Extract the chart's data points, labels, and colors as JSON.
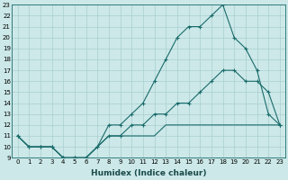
{
  "xlabel": "Humidex (Indice chaleur)",
  "bg_color": "#cce8e8",
  "grid_color": "#aacfcf",
  "line_color": "#1a6b6b",
  "line1_x": [
    0,
    1,
    2,
    3,
    4,
    5,
    6,
    7,
    8,
    9,
    10,
    11,
    12,
    13,
    14,
    15,
    16,
    17,
    18,
    19,
    20,
    21,
    22,
    23
  ],
  "line1_y": [
    11,
    10,
    10,
    10,
    9,
    9,
    9,
    10,
    12,
    12,
    13,
    14,
    16,
    18,
    20,
    21,
    21,
    22,
    23,
    20,
    19,
    17,
    13,
    12
  ],
  "line2_x": [
    0,
    1,
    2,
    3,
    4,
    5,
    6,
    7,
    8,
    9,
    10,
    11,
    12,
    13,
    14,
    15,
    16,
    17,
    18,
    19,
    20,
    21,
    22,
    23
  ],
  "line2_y": [
    11,
    10,
    10,
    10,
    9,
    9,
    9,
    10,
    11,
    11,
    12,
    12,
    13,
    13,
    14,
    14,
    15,
    16,
    17,
    17,
    16,
    16,
    15,
    12
  ],
  "line3_x": [
    0,
    1,
    2,
    3,
    4,
    5,
    6,
    7,
    8,
    9,
    10,
    11,
    12,
    13,
    14,
    15,
    16,
    17,
    18,
    19,
    20,
    21,
    22,
    23
  ],
  "line3_y": [
    11,
    10,
    10,
    10,
    9,
    9,
    9,
    10,
    11,
    11,
    11,
    11,
    11,
    12,
    12,
    12,
    12,
    12,
    12,
    12,
    12,
    12,
    12,
    12
  ],
  "xlim": [
    -0.5,
    23.5
  ],
  "ylim": [
    9,
    23
  ],
  "yticks": [
    9,
    10,
    11,
    12,
    13,
    14,
    15,
    16,
    17,
    18,
    19,
    20,
    21,
    22,
    23
  ],
  "xticks": [
    0,
    1,
    2,
    3,
    4,
    5,
    6,
    7,
    8,
    9,
    10,
    11,
    12,
    13,
    14,
    15,
    16,
    17,
    18,
    19,
    20,
    21,
    22,
    23
  ],
  "tick_fontsize": 5,
  "xlabel_fontsize": 6.5,
  "marker": "+"
}
